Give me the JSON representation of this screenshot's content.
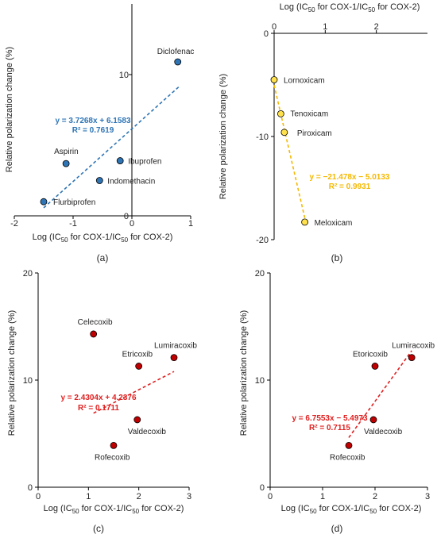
{
  "chart_data": [
    {
      "type": "scatter",
      "panel_label": "(a)",
      "xlabel": "Log (IC50 for COX-1/IC50 for COX-2)",
      "xlabel_parts": [
        "Log (IC",
        "50",
        " for COX-1/IC",
        "50",
        " for COX-2)"
      ],
      "ylabel": "Relative polarization change (%)",
      "xlim": [
        -2,
        1
      ],
      "ylim": [
        0,
        15
      ],
      "x_ticks": [
        -2,
        -1,
        0,
        1
      ],
      "y_ticks": [
        0,
        10
      ],
      "marker_color": "#2e75b6",
      "trend_color": "#2e75b6",
      "points": [
        {
          "label": "Diclofenac",
          "x": 0.78,
          "y": 10.9
        },
        {
          "label": "Aspirin",
          "x": -1.12,
          "y": 3.7
        },
        {
          "label": "Ibuprofen",
          "x": -0.2,
          "y": 3.9
        },
        {
          "label": "Indomethacin",
          "x": -0.55,
          "y": 2.5
        },
        {
          "label": "Flurbiprofen",
          "x": -1.5,
          "y": 1.0
        }
      ],
      "trendline": {
        "slope": 3.7268,
        "intercept": 6.1583
      },
      "equation": "y = 3.7268x + 6.1583",
      "r2": "R² = 0.7619"
    },
    {
      "type": "scatter",
      "panel_label": "(b)",
      "xlabel": "Log (IC50 for COX-1/IC50 for COX-2)",
      "xlabel_parts": [
        "Log (IC",
        "50",
        " for COX-1/IC",
        "50",
        " for COX-2)"
      ],
      "ylabel": "Relative polarization change (%)",
      "xlim": [
        0,
        3
      ],
      "ylim": [
        -20,
        0
      ],
      "x_ticks": [
        0,
        1,
        2
      ],
      "y_ticks": [
        0,
        -10,
        -20
      ],
      "marker_color": "#ffe14d",
      "trend_color": "#f5b800",
      "points": [
        {
          "label": "Lornoxicam",
          "x": 0.0,
          "y": -4.5
        },
        {
          "label": "Tenoxicam",
          "x": 0.13,
          "y": -7.8
        },
        {
          "label": "Piroxicam",
          "x": 0.2,
          "y": -9.6
        },
        {
          "label": "Meloxicam",
          "x": 0.6,
          "y": -18.3
        }
      ],
      "trendline": {
        "slope": -21.478,
        "intercept": -5.0133
      },
      "equation": "y = −21.478x − 5.0133",
      "r2": "R² = 0.9931"
    },
    {
      "type": "scatter",
      "panel_label": "(c)",
      "xlabel": "Log (IC50 for COX-1/IC50 for COX-2)",
      "xlabel_parts": [
        "Log (IC",
        "50",
        " for COX-1/IC",
        "50",
        " for COX-2)"
      ],
      "ylabel": "Relative polarization change (%)",
      "xlim": [
        0,
        3
      ],
      "ylim": [
        0,
        20
      ],
      "x_ticks": [
        0,
        1,
        2,
        3
      ],
      "y_ticks": [
        0,
        10,
        20
      ],
      "marker_color": "#c00000",
      "trend_color": "#e02020",
      "points": [
        {
          "label": "Celecoxib",
          "x": 1.1,
          "y": 14.3
        },
        {
          "label": "Etricoxib",
          "x": 2.0,
          "y": 11.3
        },
        {
          "label": "Lumiracoxib",
          "x": 2.7,
          "y": 12.1
        },
        {
          "label": "Valdecoxib",
          "x": 1.97,
          "y": 6.3
        },
        {
          "label": "Rofecoxib",
          "x": 1.5,
          "y": 3.9
        }
      ],
      "trendline": {
        "slope": 2.4304,
        "intercept": 4.2376
      },
      "equation": "y = 2.4304x + 4.2376",
      "r2": "R² = 0.1711"
    },
    {
      "type": "scatter",
      "panel_label": "(d)",
      "xlabel": "Log (IC50 for COX-1/IC50 for COX-2)",
      "xlabel_parts": [
        "Log (IC",
        "50",
        " for COX-1/IC",
        "50",
        " for COX-2)"
      ],
      "ylabel": "Relative polarization change (%)",
      "xlim": [
        0,
        3
      ],
      "ylim": [
        0,
        20
      ],
      "x_ticks": [
        0,
        1,
        2,
        3
      ],
      "y_ticks": [
        0,
        10,
        20
      ],
      "marker_color": "#c00000",
      "trend_color": "#e02020",
      "points": [
        {
          "label": "Etoricoxib",
          "x": 2.0,
          "y": 11.3
        },
        {
          "label": "Lumiracoxib",
          "x": 2.7,
          "y": 12.1
        },
        {
          "label": "Valdecoxib",
          "x": 1.97,
          "y": 6.3
        },
        {
          "label": "Rofecoxib",
          "x": 1.5,
          "y": 3.9
        }
      ],
      "trendline": {
        "slope": 6.7553,
        "intercept": -5.4973
      },
      "equation": "y = 6.7553x − 5.4973",
      "r2": "R² = 0.7115"
    }
  ]
}
